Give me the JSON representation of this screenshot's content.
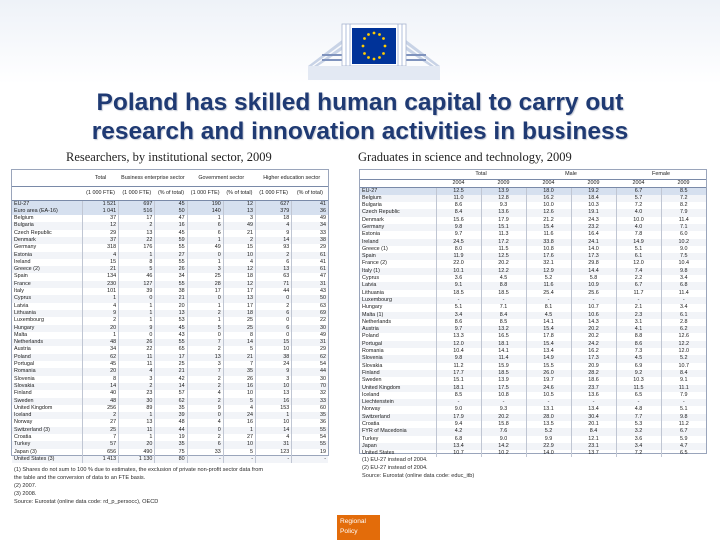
{
  "header": {
    "title_line1": "Poland has skilled human capital to carry out",
    "title_line2": "research and innovation activities in business",
    "brand_colors": {
      "navy": "#1f3a73",
      "eu_blue": "#003399",
      "eu_gold": "#ffcc00",
      "badge": "#e36c0a"
    }
  },
  "left_panel": {
    "subtitle": "Researchers, by institutional sector, 2009",
    "col_headers": [
      "",
      "Total",
      "Business enterprise sector",
      "",
      "Government sector",
      "",
      "Higher education sector",
      ""
    ],
    "col_units": [
      "",
      "(1 000 FTE)",
      "(1 000 FTE)",
      "(% of total)",
      "(1 000 FTE)",
      "(% of total)",
      "(1 000 FTE)",
      "(% of total)"
    ],
    "rows": [
      [
        "EU-27",
        "1 521",
        "697",
        "45",
        "190",
        "12",
        "627",
        "41"
      ],
      [
        "Euro area (EA-16)",
        "1 041",
        "516",
        "50",
        "140",
        "13",
        "379",
        "36"
      ],
      [
        "Belgium",
        "37",
        "17",
        "47",
        "1",
        "3",
        "18",
        "49"
      ],
      [
        "Bulgaria",
        "12",
        "2",
        "16",
        "6",
        "49",
        "4",
        "34"
      ],
      [
        "Czech Republic",
        "29",
        "13",
        "45",
        "6",
        "21",
        "9",
        "33"
      ],
      [
        "Denmark",
        "37",
        "22",
        "59",
        "1",
        "2",
        "14",
        "38"
      ],
      [
        "Germany",
        "318",
        "176",
        "55",
        "49",
        "15",
        "93",
        "29"
      ],
      [
        "Estonia",
        "4",
        "1",
        "27",
        "0",
        "10",
        "2",
        "61"
      ],
      [
        "Ireland",
        "15",
        "8",
        "55",
        "1",
        "4",
        "6",
        "41"
      ],
      [
        "Greece (2)",
        "21",
        "5",
        "26",
        "3",
        "12",
        "13",
        "61"
      ],
      [
        "Spain",
        "134",
        "46",
        "34",
        "25",
        "18",
        "63",
        "47"
      ],
      [
        "France",
        "230",
        "127",
        "55",
        "28",
        "12",
        "71",
        "31"
      ],
      [
        "Italy",
        "101",
        "39",
        "38",
        "17",
        "17",
        "44",
        "43"
      ],
      [
        "Cyprus",
        "1",
        "0",
        "21",
        "0",
        "13",
        "0",
        "50"
      ],
      [
        "Latvia",
        "4",
        "1",
        "20",
        "1",
        "17",
        "2",
        "63"
      ],
      [
        "Lithuania",
        "9",
        "1",
        "13",
        "2",
        "18",
        "6",
        "69"
      ],
      [
        "Luxembourg",
        "2",
        "1",
        "53",
        "1",
        "25",
        "0",
        "22"
      ],
      [
        "Hungary",
        "20",
        "9",
        "45",
        "5",
        "25",
        "6",
        "30"
      ],
      [
        "Malta",
        "1",
        "0",
        "43",
        "0",
        "8",
        "0",
        "49"
      ],
      [
        "Netherlands",
        "48",
        "26",
        "55",
        "7",
        "14",
        "15",
        "31"
      ],
      [
        "Austria",
        "34",
        "22",
        "65",
        "2",
        "5",
        "10",
        "29"
      ],
      [
        "Poland",
        "62",
        "11",
        "17",
        "13",
        "21",
        "38",
        "62"
      ],
      [
        "Portugal",
        "45",
        "11",
        "25",
        "3",
        "7",
        "24",
        "54"
      ],
      [
        "Romania",
        "20",
        "4",
        "21",
        "7",
        "35",
        "9",
        "44"
      ],
      [
        "Slovenia",
        "8",
        "3",
        "42",
        "2",
        "26",
        "3",
        "30"
      ],
      [
        "Slovakia",
        "14",
        "2",
        "14",
        "2",
        "16",
        "10",
        "70"
      ],
      [
        "Finland",
        "40",
        "23",
        "57",
        "4",
        "10",
        "13",
        "32"
      ],
      [
        "Sweden",
        "48",
        "30",
        "62",
        "2",
        "5",
        "16",
        "33"
      ],
      [
        "United Kingdom",
        "256",
        "89",
        "35",
        "9",
        "4",
        "153",
        "60"
      ],
      [
        "Iceland",
        "2",
        "1",
        "39",
        "0",
        "24",
        "1",
        "35"
      ],
      [
        "Norway",
        "27",
        "13",
        "48",
        "4",
        "16",
        "10",
        "36"
      ],
      [
        "Switzerland (3)",
        "25",
        "11",
        "44",
        "0",
        "1",
        "14",
        "55"
      ],
      [
        "Croatia",
        "7",
        "1",
        "19",
        "2",
        "27",
        "4",
        "54"
      ],
      [
        "Turkey",
        "57",
        "20",
        "35",
        "6",
        "10",
        "31",
        "55"
      ],
      [
        "Japan (3)",
        "656",
        "490",
        "75",
        "33",
        "5",
        "123",
        "19"
      ],
      [
        "United States (3)",
        "1 413",
        "1 130",
        "80",
        "-",
        "-",
        "-",
        "-"
      ]
    ],
    "notes": [
      "(1) Shares do not sum to 100 % due to estimates, the exclusion of private non-profit sector data from",
      "the table and the conversion of data to an FTE basis.",
      "(2) 2007.",
      "(3) 2008.",
      "Source: Eurostat (online data code: rd_p_persocc), OECD"
    ]
  },
  "right_panel": {
    "subtitle": "Graduates in science and technology, 2009",
    "group_headers": [
      "Total",
      "Male",
      "Female"
    ],
    "year_headers": [
      "2004",
      "2009",
      "2004",
      "2009",
      "2004",
      "2009"
    ],
    "rows": [
      [
        "EU-27",
        "12.5",
        "13.9",
        "18.0",
        "19.2",
        "6.7",
        "8.5"
      ],
      [
        "Belgium",
        "11.0",
        "12.8",
        "16.2",
        "18.4",
        "5.7",
        "7.2"
      ],
      [
        "Bulgaria",
        "8.6",
        "9.3",
        "10.0",
        "10.3",
        "7.2",
        "8.2"
      ],
      [
        "Czech Republic",
        "8.4",
        "13.6",
        "12.6",
        "19.1",
        "4.0",
        "7.9"
      ],
      [
        "Denmark",
        "15.6",
        "17.9",
        "21.2",
        "24.3",
        "10.0",
        "11.4"
      ],
      [
        "Germany",
        "9.8",
        "15.1",
        "15.4",
        "23.2",
        "4.0",
        "7.1"
      ],
      [
        "Estonia",
        "9.7",
        "11.3",
        "11.6",
        "16.4",
        "7.8",
        "6.0"
      ],
      [
        "Ireland",
        "24.5",
        "17.2",
        "33.8",
        "24.1",
        "14.9",
        "10.2"
      ],
      [
        "Greece (1)",
        "8.0",
        "11.5",
        "10.8",
        "14.0",
        "5.1",
        "9.0"
      ],
      [
        "Spain",
        "11.9",
        "12.5",
        "17.6",
        "17.3",
        "6.1",
        "7.5"
      ],
      [
        "France (2)",
        "22.0",
        "20.2",
        "32.1",
        "29.8",
        "12.0",
        "10.4"
      ],
      [
        "Italy (1)",
        "10.1",
        "12.2",
        "12.9",
        "14.4",
        "7.4",
        "9.8"
      ],
      [
        "Cyprus",
        "3.6",
        "4.5",
        "5.2",
        "5.8",
        "2.2",
        "3.4"
      ],
      [
        "Latvia",
        "9.1",
        "8.8",
        "11.6",
        "10.9",
        "6.7",
        "6.8"
      ],
      [
        "Lithuania",
        "18.5",
        "18.5",
        "25.4",
        "25.6",
        "11.7",
        "11.4"
      ],
      [
        "Luxembourg",
        "-",
        "-",
        "-",
        "-",
        "-",
        "-"
      ],
      [
        "Hungary",
        "5.1",
        "7.1",
        "8.1",
        "10.7",
        "2.1",
        "3.4"
      ],
      [
        "Malta (1)",
        "3.4",
        "8.4",
        "4.5",
        "10.6",
        "2.3",
        "6.1"
      ],
      [
        "Netherlands",
        "8.6",
        "8.5",
        "14.1",
        "14.3",
        "3.1",
        "2.8"
      ],
      [
        "Austria",
        "9.7",
        "13.2",
        "15.4",
        "20.2",
        "4.1",
        "6.2"
      ],
      [
        "Poland",
        "13.3",
        "16.5",
        "17.8",
        "20.2",
        "8.8",
        "12.6"
      ],
      [
        "Portugal",
        "12.0",
        "18.1",
        "15.4",
        "24.2",
        "8.6",
        "12.2"
      ],
      [
        "Romania",
        "10.4",
        "14.1",
        "13.4",
        "16.2",
        "7.3",
        "12.0"
      ],
      [
        "Slovenia",
        "9.8",
        "11.4",
        "14.9",
        "17.3",
        "4.5",
        "5.2"
      ],
      [
        "Slovakia",
        "11.2",
        "15.9",
        "15.5",
        "20.9",
        "6.9",
        "10.7"
      ],
      [
        "Finland",
        "17.7",
        "18.5",
        "26.0",
        "28.2",
        "9.2",
        "8.4"
      ],
      [
        "Sweden",
        "15.1",
        "13.9",
        "19.7",
        "18.6",
        "10.3",
        "9.1"
      ],
      [
        "United Kingdom",
        "18.1",
        "17.5",
        "24.6",
        "23.7",
        "11.5",
        "11.1"
      ],
      [
        "Iceland",
        "8.5",
        "10.8",
        "10.5",
        "13.6",
        "6.5",
        "7.9"
      ],
      [
        "Liechtenstein",
        "-",
        "-",
        "-",
        "-",
        "-",
        "-"
      ],
      [
        "Norway",
        "9.0",
        "9.3",
        "13.1",
        "13.4",
        "4.8",
        "5.1"
      ],
      [
        "Switzerland",
        "17.9",
        "20.2",
        "28.0",
        "30.4",
        "7.7",
        "9.8"
      ],
      [
        "Croatia",
        "9.4",
        "15.8",
        "13.5",
        "20.1",
        "5.3",
        "11.2"
      ],
      [
        "FYR of Macedonia",
        "4.2",
        "7.6",
        "5.2",
        "8.4",
        "3.2",
        "6.7"
      ],
      [
        "Turkey",
        "6.8",
        "9.0",
        "9.9",
        "12.1",
        "3.6",
        "5.9"
      ],
      [
        "Japan",
        "13.4",
        "14.2",
        "22.9",
        "23.1",
        "3.4",
        "4.7"
      ],
      [
        "United States",
        "10.7",
        "10.2",
        "14.0",
        "13.7",
        "7.2",
        "6.5"
      ]
    ],
    "notes": [
      "(1) EU-27 instead of 2004.",
      "(2) EU-27 instead of 2004.",
      "Source: Eurostat (online data code: educ_itb)"
    ]
  },
  "footer": {
    "badge_line1": "Regional",
    "badge_line2": "Policy"
  }
}
